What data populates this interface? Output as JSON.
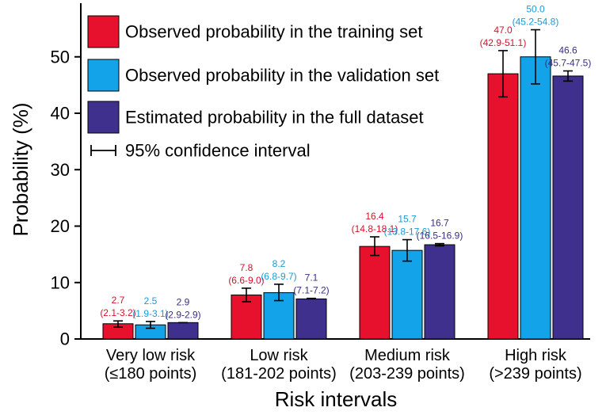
{
  "chart_data": {
    "type": "bar",
    "ylabel": "Probability (%)",
    "xlabel": "Risk intervals",
    "ylim": [
      0,
      58
    ],
    "yticks": [
      0,
      10,
      20,
      30,
      40,
      50
    ],
    "grid": false,
    "legend_position": "top-left",
    "categories": [
      {
        "name": "Very low risk",
        "sub": "(≤180 points)"
      },
      {
        "name": "Low risk",
        "sub": "(181-202 points)"
      },
      {
        "name": "Medium risk",
        "sub": "(203-239 points)"
      },
      {
        "name": "High risk",
        "sub": "(>239 points)"
      }
    ],
    "series": [
      {
        "name": "Observed probability in the training set",
        "color": "#e8112d",
        "label_color": "#d8102a",
        "values": [
          2.7,
          7.8,
          16.4,
          47.0
        ],
        "ci": [
          [
            2.1,
            3.2
          ],
          [
            6.6,
            9.0
          ],
          [
            14.8,
            18.1
          ],
          [
            42.9,
            51.1
          ]
        ],
        "value_labels": [
          "2.7",
          "7.8",
          "16.4",
          "47.0"
        ],
        "ci_labels": [
          "(2.1-3.2)",
          "(6.6-9.0)",
          "(14.8-18.1)",
          "(42.9-51.1)"
        ]
      },
      {
        "name": "Observed probability in the validation set",
        "color": "#13a3e8",
        "label_color": "#1a9ad6",
        "values": [
          2.5,
          8.2,
          15.7,
          50.0
        ],
        "ci": [
          [
            1.9,
            3.1
          ],
          [
            6.8,
            9.7
          ],
          [
            13.8,
            17.6
          ],
          [
            45.2,
            54.8
          ]
        ],
        "value_labels": [
          "2.5",
          "8.2",
          "15.7",
          "50.0"
        ],
        "ci_labels": [
          "(1.9-3.1)",
          "(6.8-9.7)",
          "(13.8-17.6)",
          "(45.2-54.8)"
        ]
      },
      {
        "name": "Estimated probability in the full dataset",
        "color": "#40308d",
        "label_color": "#3a2d85",
        "values": [
          2.9,
          7.1,
          16.7,
          46.6
        ],
        "ci": [
          [
            2.9,
            2.9
          ],
          [
            7.1,
            7.2
          ],
          [
            16.5,
            16.9
          ],
          [
            45.7,
            47.5
          ]
        ],
        "value_labels": [
          "2.9",
          "7.1",
          "16.7",
          "46.6"
        ],
        "ci_labels": [
          "(2.9-2.9)",
          "(7.1-7.2)",
          "(16.5-16.9)",
          "(45.7-47.5)"
        ]
      }
    ],
    "ci_legend_label": "95% confidence interval"
  }
}
